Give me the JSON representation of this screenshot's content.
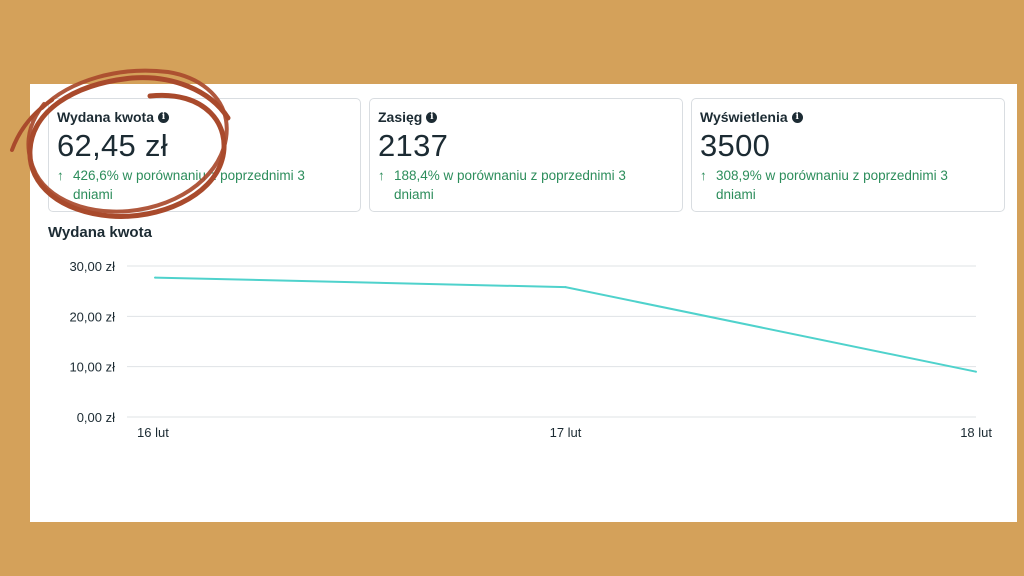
{
  "cards": [
    {
      "title": "Wydana kwota",
      "value": "62,45 zł",
      "change_arrow": "↑",
      "change_line1": "426,6% w porównaniu z poprzednimi 3",
      "change_line2": "dniami"
    },
    {
      "title": "Zasięg",
      "value": "2137",
      "change_arrow": "↑",
      "change_line1": "188,4% w porównaniu z poprzednimi 3",
      "change_line2": "dniami"
    },
    {
      "title": "Wyświetlenia",
      "value": "3500",
      "change_arrow": "↑",
      "change_line1": "308,9% w porównaniu z poprzednimi 3",
      "change_line2": "dniami"
    }
  ],
  "icons": {
    "info": "info-icon",
    "arrow": "arrow-up-icon"
  },
  "colors": {
    "background": "#d4a15a",
    "positive": "#2c8d5b",
    "line": "#4fd2cc",
    "circle": "#a94a2c"
  },
  "chart_data": {
    "type": "line",
    "title": "Wydana kwota",
    "categories": [
      "16 lut",
      "17 lut",
      "18 lut"
    ],
    "series": [
      {
        "values": [
          27.7,
          25.8,
          9.0
        ]
      }
    ],
    "y_ticks": [
      "0,00 zł",
      "10,00 zł",
      "20,00 zł",
      "30,00 zł"
    ],
    "ylim": [
      0,
      30
    ],
    "grid": true
  }
}
